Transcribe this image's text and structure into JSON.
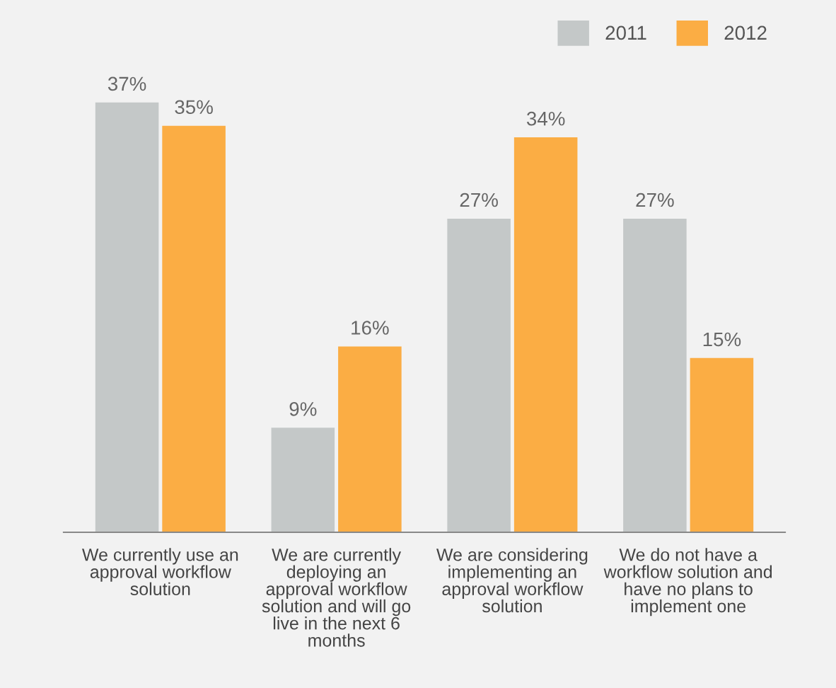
{
  "chart_data": {
    "type": "bar",
    "categories": [
      "We currently use an\napproval workflow\nsolution",
      "We are currently\ndeploying an\napproval workflow\nsolution and will go\nlive in the next 6\nmonths",
      "We are considering\nimplementing an\napproval workflow\nsolution",
      "We do not have a\nworkflow solution and\nhave no plans to\nimplement one"
    ],
    "series": [
      {
        "name": "2011",
        "color": "#c4c8c8",
        "values": [
          37,
          9,
          27,
          27
        ],
        "value_labels": [
          "37%",
          "9%",
          "27%",
          "27%"
        ]
      },
      {
        "name": "2012",
        "color": "#fbad44",
        "values": [
          35,
          16,
          34,
          15
        ],
        "value_labels": [
          "35%",
          "16%",
          "34%",
          "15%"
        ]
      }
    ],
    "legend": "top right",
    "grid": false
  }
}
